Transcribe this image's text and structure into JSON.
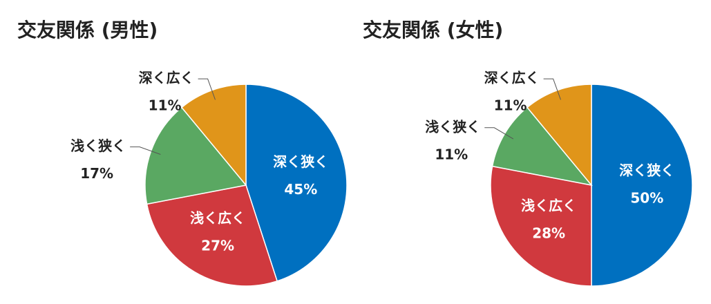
{
  "chart_data": [
    {
      "type": "pie",
      "title": "交友関係 (男性)",
      "categories": [
        "深く狭く",
        "浅く広く",
        "浅く狭く",
        "深く広く"
      ],
      "values": [
        45,
        27,
        17,
        11
      ],
      "value_labels": [
        "45%",
        "27%",
        "17%",
        "11%"
      ],
      "colors": [
        "#0070c0",
        "#d0393e",
        "#5aa862",
        "#e0951a"
      ]
    },
    {
      "type": "pie",
      "title": "交友関係 (女性)",
      "categories": [
        "深く狭く",
        "浅く広く",
        "浅く狭く",
        "深く広く"
      ],
      "values": [
        50,
        28,
        11,
        11
      ],
      "value_labels": [
        "50%",
        "28%",
        "11%",
        "11%"
      ],
      "colors": [
        "#0070c0",
        "#d0393e",
        "#5aa862",
        "#e0951a"
      ]
    }
  ]
}
